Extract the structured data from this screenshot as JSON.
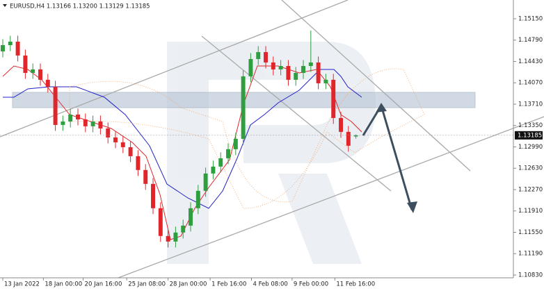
{
  "chart_data": {
    "type": "candlestick",
    "title": "EURUSD,H4  1.13166 1.13200 1.13129 1.13185",
    "up_color": "#2e9e3e",
    "down_color": "#e0262b",
    "x": [
      0,
      1,
      2,
      3,
      4,
      5,
      6,
      7,
      8,
      9,
      10,
      11,
      12,
      13,
      14,
      15,
      16,
      17,
      18,
      19,
      20,
      21,
      22,
      23,
      24,
      25,
      26,
      27,
      28,
      29,
      30,
      31,
      32,
      33,
      34,
      35,
      36,
      37,
      38,
      39,
      40,
      41,
      42,
      43,
      44,
      45,
      46,
      47
    ],
    "open": [
      1.146,
      1.14705,
      1.14764,
      1.1453,
      1.14237,
      1.14296,
      1.14121,
      1.14004,
      1.1336,
      1.13418,
      1.13535,
      1.13453,
      1.13337,
      1.13418,
      1.13301,
      1.13149,
      1.13067,
      1.12985,
      1.12833,
      1.126,
      1.12366,
      1.11956,
      1.11488,
      1.11394,
      1.11546,
      1.11663,
      1.11956,
      1.12249,
      1.12541,
      1.12658,
      1.12798,
      1.12951,
      1.13126,
      1.14179,
      1.14471,
      1.14588,
      1.14413,
      1.14296,
      1.14354,
      1.14121,
      1.14237,
      1.14354,
      1.14413,
      1.14062,
      1.14121,
      1.13477,
      1.13243,
      1.13166
    ],
    "high": [
      1.14805,
      1.14864,
      1.14864,
      1.1463,
      1.14396,
      1.14396,
      1.14221,
      1.14104,
      1.13518,
      1.13635,
      1.13635,
      1.13553,
      1.13518,
      1.13518,
      1.13401,
      1.13249,
      1.13167,
      1.13085,
      1.12933,
      1.127,
      1.12466,
      1.12056,
      1.11588,
      1.11646,
      1.11763,
      1.12056,
      1.12349,
      1.12641,
      1.12758,
      1.12898,
      1.13051,
      1.13226,
      1.14279,
      1.14571,
      1.14688,
      1.14688,
      1.14513,
      1.14454,
      1.14454,
      1.14337,
      1.14454,
      1.1495,
      1.14513,
      1.14221,
      1.14221,
      1.13577,
      1.13343,
      1.132
    ],
    "low": [
      1.145,
      1.14605,
      1.1443,
      1.14137,
      1.14137,
      1.14021,
      1.13904,
      1.1326,
      1.1326,
      1.13318,
      1.13353,
      1.13237,
      1.13237,
      1.13201,
      1.13049,
      1.12967,
      1.12885,
      1.12733,
      1.125,
      1.12266,
      1.11856,
      1.11388,
      1.11294,
      1.11294,
      1.11446,
      1.11563,
      1.11856,
      1.12149,
      1.12441,
      1.12558,
      1.12698,
      1.12851,
      1.13026,
      1.14079,
      1.14371,
      1.14313,
      1.14196,
      1.14196,
      1.14021,
      1.14021,
      1.14137,
      1.14254,
      1.13962,
      1.13962,
      1.13377,
      1.13143,
      1.12909,
      1.13129
    ],
    "close": [
      1.14705,
      1.14764,
      1.1453,
      1.14237,
      1.14296,
      1.14121,
      1.14004,
      1.1336,
      1.13418,
      1.13535,
      1.13453,
      1.13337,
      1.13418,
      1.13301,
      1.13149,
      1.13067,
      1.12985,
      1.12833,
      1.126,
      1.12366,
      1.11956,
      1.11488,
      1.11394,
      1.11546,
      1.11663,
      1.11956,
      1.12249,
      1.12541,
      1.12658,
      1.12798,
      1.12951,
      1.13126,
      1.14179,
      1.14471,
      1.14588,
      1.14413,
      1.14296,
      1.14354,
      1.14121,
      1.14237,
      1.14354,
      1.14413,
      1.14062,
      1.14121,
      1.13477,
      1.13243,
      1.13009,
      1.13185
    ],
    "xlim": [
      -0.37,
      67.96
    ],
    "ylim": [
      1.10783,
      1.15466
    ],
    "xticks": [
      {
        "value": 0,
        "label": "13 Jan 2022"
      },
      {
        "value": 5.4,
        "label": "18 Jan 00:00"
      },
      {
        "value": 10.7,
        "label": "20 Jan 16:00"
      },
      {
        "value": 16.5,
        "label": "25 Jan 08:00"
      },
      {
        "value": 22,
        "label": "28 Jan 00:00"
      },
      {
        "value": 27.6,
        "label": "1 Feb 16:00"
      },
      {
        "value": 33.1,
        "label": "4 Feb 08:00"
      },
      {
        "value": 38.5,
        "label": "9 Feb 00:00"
      },
      {
        "value": 44.2,
        "label": "11 Feb 16:00"
      }
    ],
    "yticks": [
      {
        "value": 1.1515,
        "label": "1.15150"
      },
      {
        "value": 1.1479,
        "label": "1.14790"
      },
      {
        "value": 1.1443,
        "label": "1.14430"
      },
      {
        "value": 1.1407,
        "label": "1.14070"
      },
      {
        "value": 1.1371,
        "label": "1.13710"
      },
      {
        "value": 1.1335,
        "label": "1.13350"
      },
      {
        "value": 1.1299,
        "label": "1.12990"
      },
      {
        "value": 1.1263,
        "label": "1.12630"
      },
      {
        "value": 1.1227,
        "label": "1.12270"
      },
      {
        "value": 1.1191,
        "label": "1.11910"
      },
      {
        "value": 1.1155,
        "label": "1.11550"
      },
      {
        "value": 1.1119,
        "label": "1.11190"
      },
      {
        "value": 1.1083,
        "label": "1.10830"
      }
    ]
  }
}
